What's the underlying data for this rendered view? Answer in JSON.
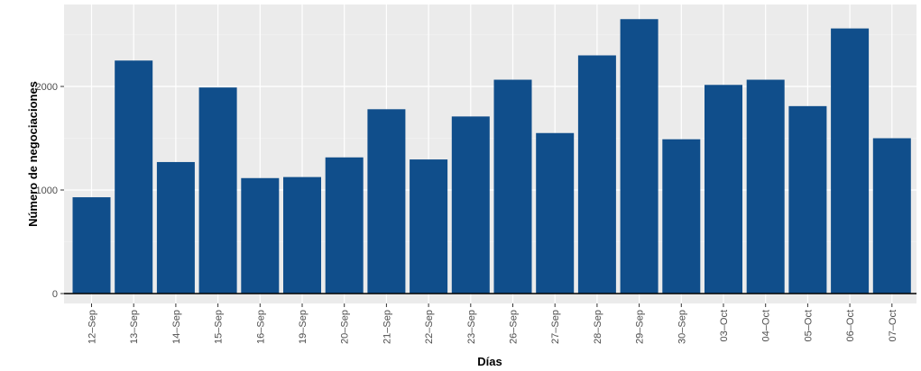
{
  "chart_data": {
    "type": "bar",
    "title": "",
    "xlabel": "Días",
    "ylabel": "Número de negociaciones",
    "ylim": [
      -200,
      2800
    ],
    "yticks": [
      0,
      1000,
      2000
    ],
    "grid": true,
    "bar_color": "#104E8B",
    "panel_color": "#EBEBEB",
    "categories": [
      "12–Sep",
      "13–Sep",
      "14–Sep",
      "15–Sep",
      "16–Sep",
      "19–Sep",
      "20–Sep",
      "21–Sep",
      "22–Sep",
      "23–Sep",
      "26–Sep",
      "27–Sep",
      "28–Sep",
      "29–Sep",
      "30–Sep",
      "03–Oct",
      "04–Oct",
      "05–Oct",
      "06–Oct",
      "07–Oct"
    ],
    "values": [
      930,
      2250,
      1270,
      1990,
      1115,
      1125,
      1315,
      1780,
      1295,
      1710,
      2065,
      1550,
      2300,
      2650,
      1490,
      2015,
      2065,
      1810,
      2560,
      1500
    ]
  }
}
